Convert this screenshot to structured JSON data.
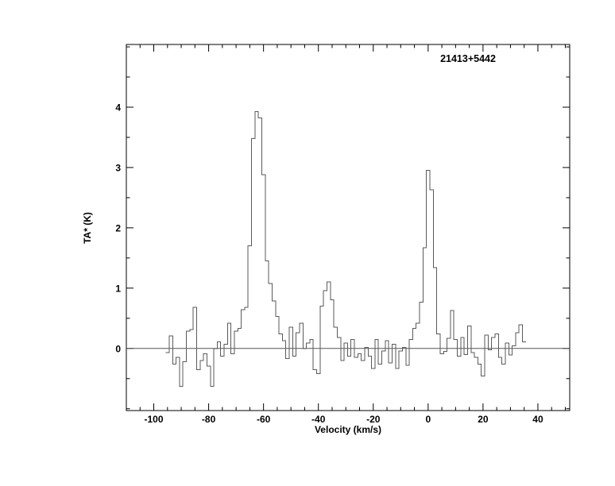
{
  "page": {
    "background": "#ffffff"
  },
  "chart_data": {
    "type": "line",
    "style": "histogram-step",
    "title": "21413+5442",
    "xlabel": "Velocity (km/s)",
    "ylabel": "TA* (K)",
    "xlim": [
      -110,
      51.6
    ],
    "ylim": [
      -1.03,
      5.04
    ],
    "x_major_ticks": [
      -100,
      -80,
      -60,
      -40,
      -20,
      0,
      20,
      40
    ],
    "x_major_tick_labels": [
      "-100",
      "-80",
      "-60",
      "-40",
      "-20",
      "0",
      "20",
      "40"
    ],
    "x_minor_tick_step": 5,
    "y_major_ticks": [
      0,
      1,
      2,
      3,
      4
    ],
    "y_major_tick_labels": [
      "0",
      "1",
      "2",
      "3",
      "4"
    ],
    "y_minor_tick_step": 0.5,
    "grid": false,
    "legend": null,
    "zero_baseline": true,
    "axis_color": "#000000",
    "baseline_color": "#555555",
    "line_color": "#5a5a5a",
    "series": [
      {
        "name": "spectrum",
        "x_start": -95.0,
        "x_step": 1.25,
        "values": [
          -0.07,
          0.21,
          -0.26,
          -0.15,
          -0.63,
          -0.22,
          0.29,
          0.31,
          0.68,
          -0.35,
          -0.2,
          -0.09,
          -0.29,
          -0.63,
          0.0,
          0.11,
          -0.13,
          0.07,
          0.42,
          -0.09,
          0.29,
          0.33,
          0.64,
          0.68,
          1.7,
          3.48,
          3.93,
          3.82,
          2.88,
          1.45,
          1.08,
          0.79,
          0.53,
          0.24,
          0.13,
          -0.17,
          0.35,
          -0.13,
          0.26,
          0.42,
          0.0,
          0.09,
          0.15,
          -0.35,
          -0.42,
          0.7,
          0.96,
          1.1,
          0.81,
          0.35,
          0.18,
          -0.2,
          0.09,
          -0.13,
          0.15,
          -0.15,
          -0.09,
          -0.2,
          0.02,
          -0.13,
          -0.33,
          0.15,
          -0.26,
          -0.04,
          0.13,
          -0.24,
          0.07,
          -0.33,
          -0.04,
          0.02,
          -0.28,
          0.15,
          0.33,
          0.42,
          0.77,
          1.67,
          2.95,
          2.63,
          1.34,
          0.24,
          -0.09,
          -0.05,
          0.17,
          0.63,
          0.15,
          -0.13,
          0.18,
          -0.1,
          0.37,
          -0.07,
          -0.15,
          -0.26,
          -0.46,
          0.22,
          -0.02,
          0.18,
          0.24,
          -0.15,
          -0.26,
          0.09,
          -0.11,
          0.04,
          0.26,
          0.39,
          0.11
        ]
      }
    ]
  }
}
